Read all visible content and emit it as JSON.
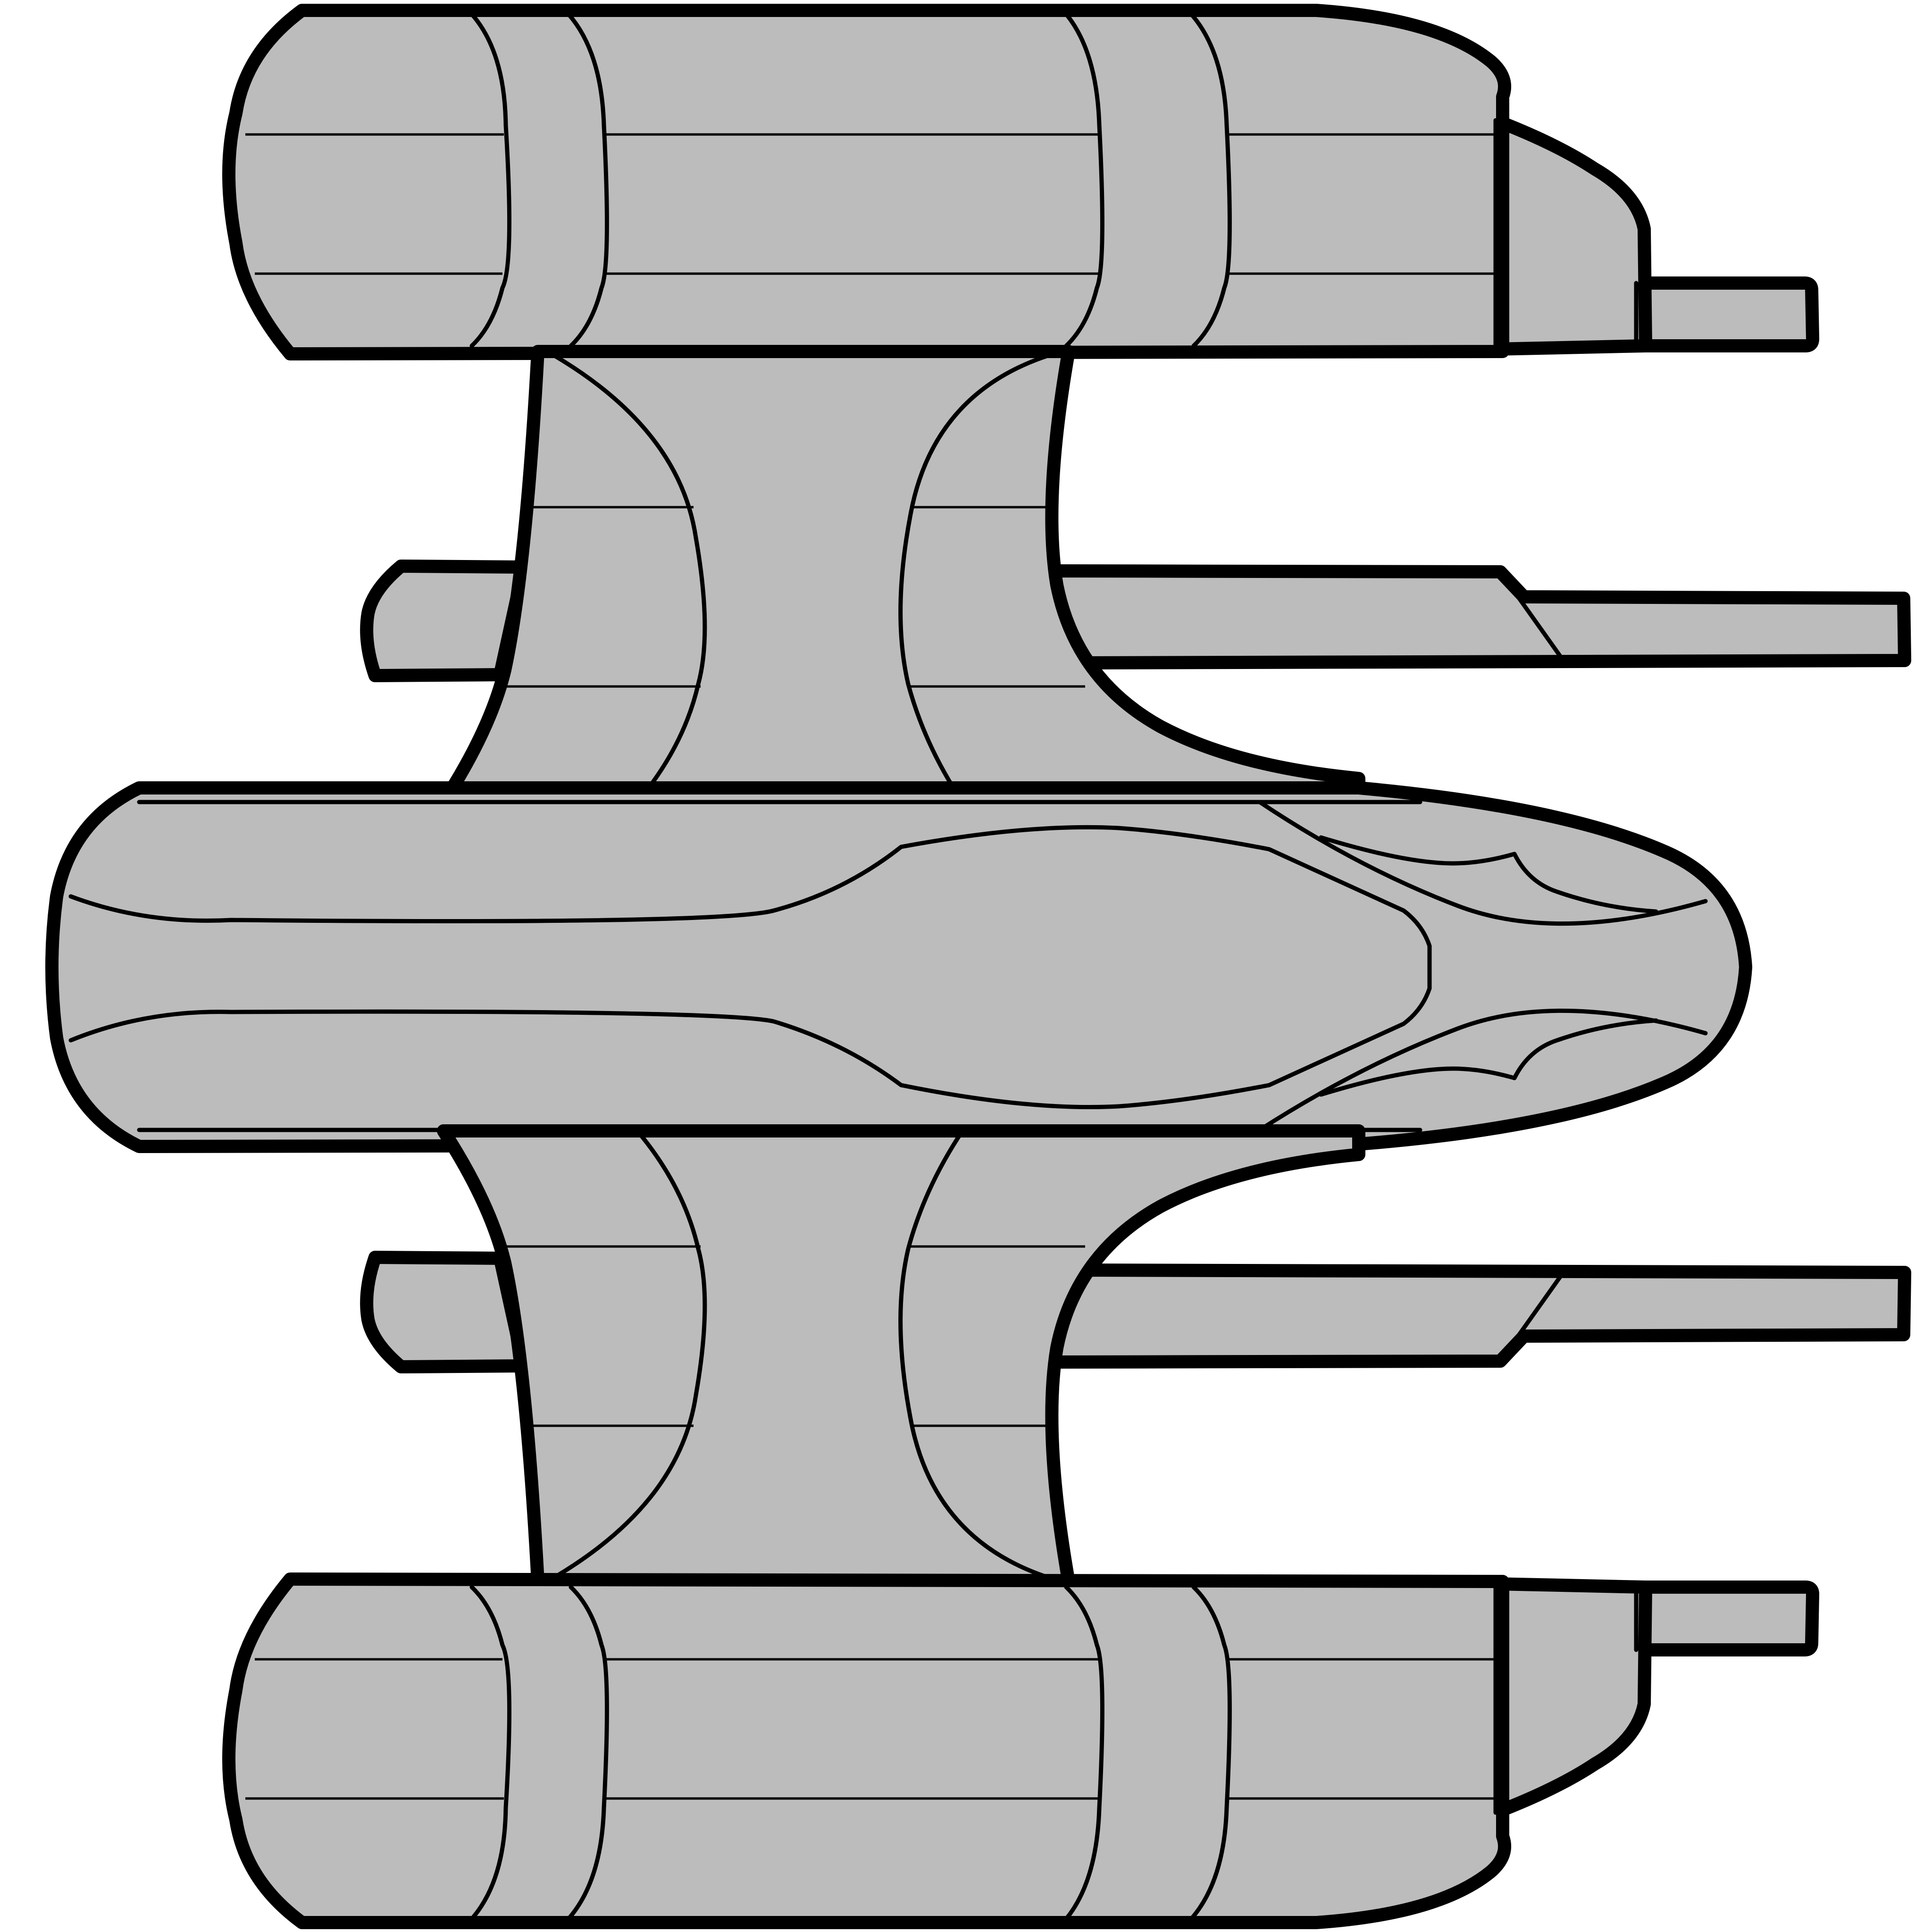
{
  "drawing": {
    "kind": "line-art illustration",
    "colors": {
      "background": "#ffffff",
      "fill": "#bcbcbc",
      "stroke": "#000000"
    }
  }
}
